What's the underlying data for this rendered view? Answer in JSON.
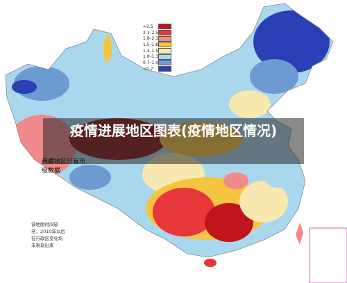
{
  "title": "疫情进展地区图表(疫情地区情况)",
  "legend": [
    {
      "label": ">2.5",
      "color": "#c0141c"
    },
    {
      "label": "2.1–2.5",
      "color": "#e8373a"
    },
    {
      "label": "1.8–2.1",
      "color": "#f08a8c"
    },
    {
      "label": "1.5–1.8",
      "color": "#f5c542"
    },
    {
      "label": "1.3–1.5",
      "color": "#f7e9b0"
    },
    {
      "label": "1.0–1.3",
      "color": "#a9d8ee"
    },
    {
      "label": "0.7–1.0",
      "color": "#6b9bd1"
    },
    {
      "label": "<0.7",
      "color": "#2a3fb5"
    }
  ],
  "tibet_note": "西藏地区只有市级数据",
  "old_map_note": [
    "该地图时间较",
    "老，2010年以后",
    "在行政区变化均",
    "未表现出来"
  ]
}
